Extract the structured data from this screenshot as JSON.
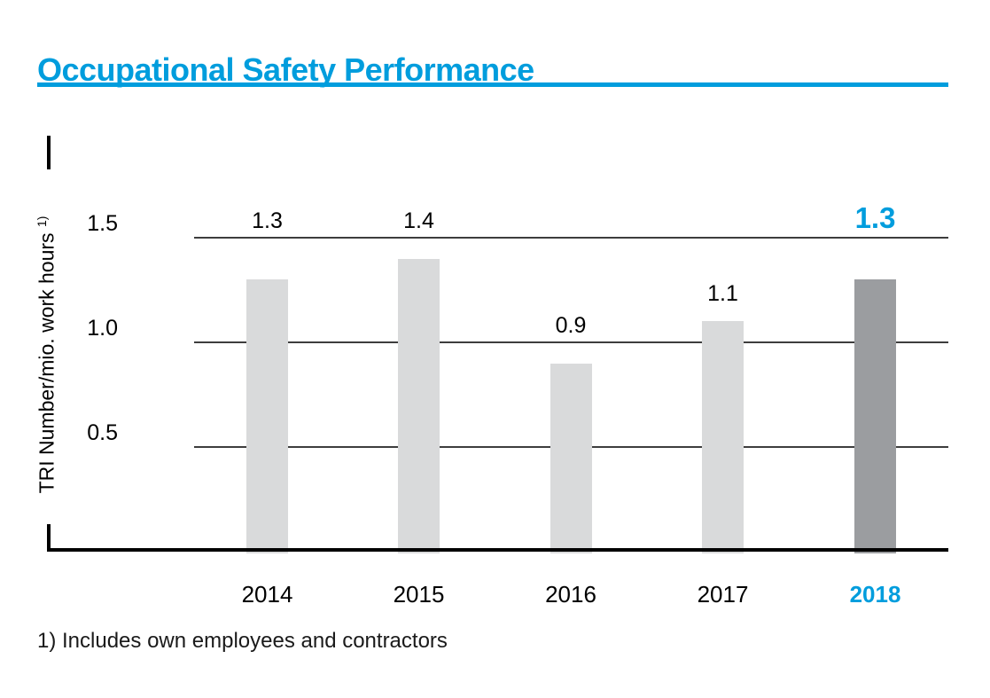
{
  "header": {
    "title": "Occupational Safety Performance"
  },
  "chart_data": {
    "type": "bar",
    "title": "Occupational Safety Performance",
    "ylabel": "TRI Number/mio. work hours",
    "ylabel_footnote_marker": "1)",
    "categories": [
      "2014",
      "2015",
      "2016",
      "2017",
      "2018"
    ],
    "values": [
      1.3,
      1.4,
      0.9,
      1.1,
      1.3
    ],
    "value_labels": [
      "1.3",
      "1.4",
      "0.9",
      "1.1",
      "1.3"
    ],
    "yticks": [
      0.5,
      1.0,
      1.5
    ],
    "ytick_labels": [
      "0.5",
      "1.0",
      "1.5"
    ],
    "ylim": [
      0,
      1.65
    ],
    "grid": "horizontal-only",
    "legend": "none",
    "highlight_index": 4,
    "colors": {
      "bar": "#d9dadb",
      "bar_highlight": "#9b9da0",
      "accent": "#009ddd",
      "gridline": "#3d3d3d",
      "axis": "#000000"
    }
  },
  "footnote": {
    "text": "1) Includes own employees and contractors"
  }
}
